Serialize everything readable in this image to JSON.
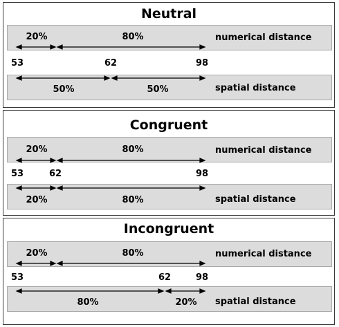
{
  "panels": [
    {
      "title": "Neutral",
      "numerical_label": "numerical distance",
      "spatial_label": "spatial distance",
      "numbers": [
        "53",
        "62",
        "98"
      ],
      "numerical_percents": [
        "20%",
        "80%"
      ],
      "spatial_percents": [
        "50%",
        "50%"
      ]
    },
    {
      "title": "Congruent",
      "numerical_label": "numerical distance",
      "spatial_label": "spatial distance",
      "numbers": [
        "53",
        "62",
        "98"
      ],
      "numerical_percents": [
        "20%",
        "80%"
      ],
      "spatial_percents": [
        "20%",
        "80%"
      ]
    },
    {
      "title": "Incongruent",
      "numerical_label": "numerical distance",
      "spatial_label": "spatial distance",
      "numbers": [
        "53",
        "62",
        "98"
      ],
      "numerical_percents": [
        "20%",
        "80%"
      ],
      "spatial_percents": [
        "80%",
        "20%"
      ]
    }
  ]
}
